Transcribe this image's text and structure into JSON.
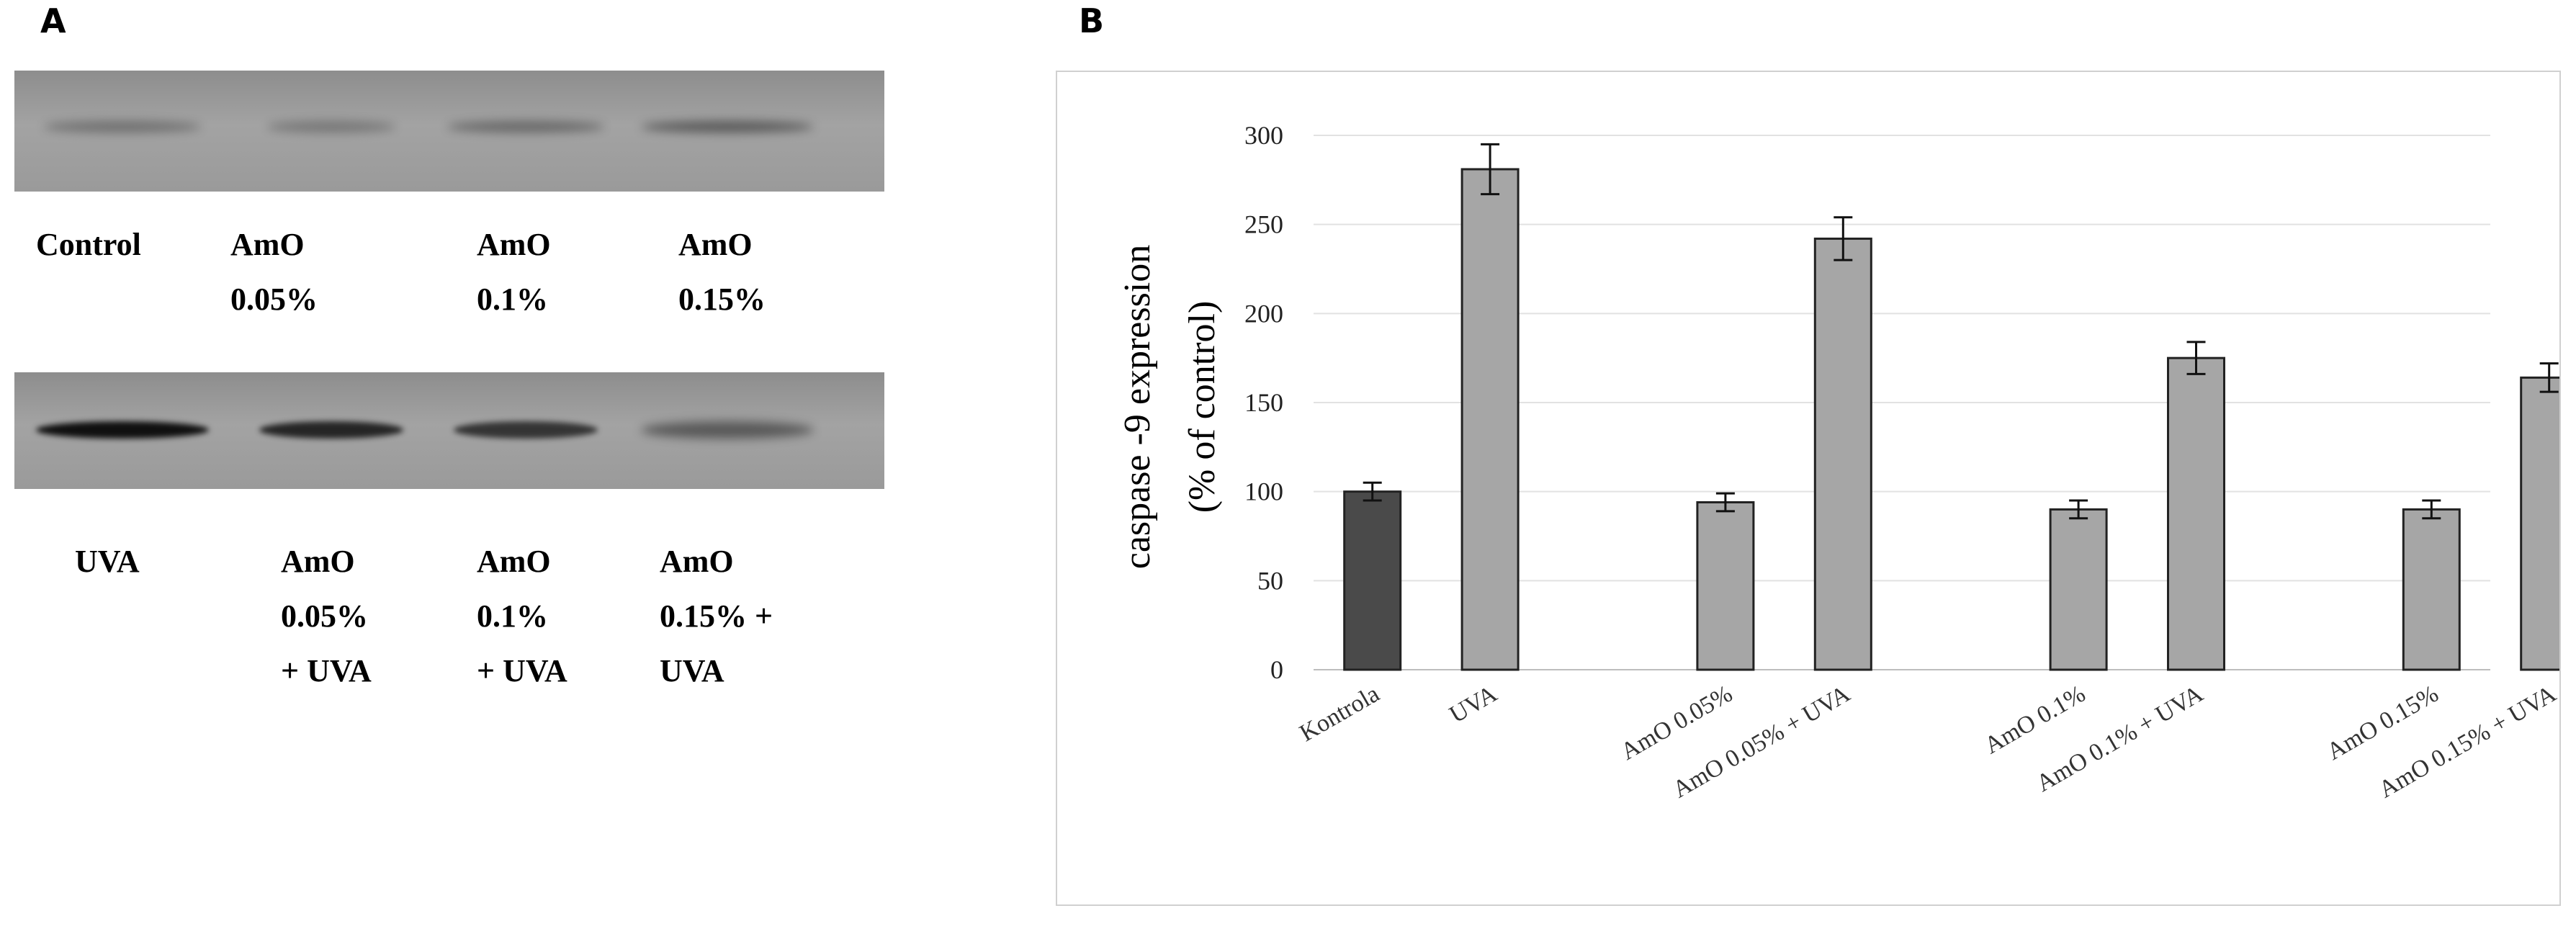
{
  "panel_a": {
    "letter": "A",
    "top_blot_labels": [
      [
        "Control"
      ],
      [
        "AmO",
        "0.05%"
      ],
      [
        "AmO",
        "0.1%"
      ],
      [
        "AmO",
        "0.15%"
      ]
    ],
    "bottom_blot_labels": [
      [
        "UVA"
      ],
      [
        "AmO",
        "0.05%",
        "+ UVA"
      ],
      [
        "AmO",
        "0.1%",
        "+ UVA"
      ],
      [
        "AmO",
        "0.15% +",
        "UVA"
      ]
    ],
    "band_intensity_top": [
      0.35,
      0.3,
      0.4,
      0.5
    ],
    "band_intensity_bottom": [
      1.0,
      0.85,
      0.75,
      0.5
    ],
    "colors": {
      "band": "#101010"
    }
  },
  "panel_b": {
    "letter": "B"
  },
  "chart_data": {
    "type": "bar",
    "title": "",
    "ylabel_lines": [
      "caspase -9 expression",
      "(% of control)"
    ],
    "xlabel": "",
    "ylim": [
      0,
      300
    ],
    "yticks": [
      0,
      50,
      100,
      150,
      200,
      250,
      300
    ],
    "grid": true,
    "groups": [
      {
        "categories": [
          "Kontrola",
          "UVA"
        ],
        "values": [
          100,
          281
        ],
        "errors": [
          5,
          14
        ],
        "colors": [
          "#4a4a4a",
          "#a6a6a6"
        ]
      },
      {
        "categories": [
          "AmO 0.05%",
          "AmO 0.05%  + UVA"
        ],
        "values": [
          94,
          242
        ],
        "errors": [
          5,
          12
        ],
        "colors": [
          "#a6a6a6",
          "#a6a6a6"
        ]
      },
      {
        "categories": [
          "AmO 0.1%",
          "AmO 0.1% + UVA"
        ],
        "values": [
          90,
          175
        ],
        "errors": [
          5,
          9
        ],
        "colors": [
          "#a6a6a6",
          "#a6a6a6"
        ]
      },
      {
        "categories": [
          "AmO 0.15%",
          "AmO 0.15% + UVA"
        ],
        "values": [
          90,
          164
        ],
        "errors": [
          5,
          8
        ],
        "colors": [
          "#a6a6a6",
          "#a6a6a6"
        ]
      }
    ]
  }
}
